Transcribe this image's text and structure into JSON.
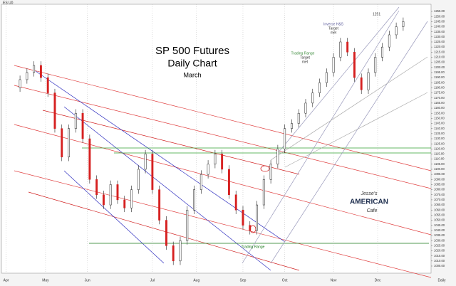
{
  "chart_data": {
    "type": "candlestick",
    "title": "SP 500 Futures",
    "subtitle": "Daily Chart",
    "note": "March",
    "symbol": "ES U0",
    "timeframe": "Daily",
    "annotations": [
      "1251",
      "Inverse H&S",
      "Target",
      "met",
      "Trading Range",
      "Target",
      "met",
      "Trading Range"
    ],
    "logo": [
      "Jesse's",
      "AMERICAN",
      "Cafe"
    ],
    "up_color": "#ffffff",
    "down_color": "#d62020",
    "grid": true,
    "xlim": [
      -5,
      180
    ],
    "ylim": [
      998,
      1262
    ],
    "xticks": [
      {
        "value": -3,
        "label": "Apr"
      },
      {
        "value": 14,
        "label": "May"
      },
      {
        "value": 32,
        "label": "Jun"
      },
      {
        "value": 60,
        "label": "Jul"
      },
      {
        "value": 79,
        "label": "Aug"
      },
      {
        "value": 99,
        "label": "Sep"
      },
      {
        "value": 117,
        "label": "Oct"
      },
      {
        "value": 138,
        "label": "Nov"
      },
      {
        "value": 157,
        "label": "Dec"
      }
    ],
    "yticks": [
      {
        "value": 1005,
        "label": "1005.00"
      },
      {
        "value": 1010,
        "label": "1010.00"
      },
      {
        "value": 1015,
        "label": "1015.00"
      },
      {
        "value": 1020,
        "label": "1020.00"
      },
      {
        "value": 1025,
        "label": "1025.00"
      },
      {
        "value": 1030,
        "label": "1030.00"
      },
      {
        "value": 1035,
        "label": "1035.00"
      },
      {
        "value": 1040,
        "label": "1040.00"
      },
      {
        "value": 1045,
        "label": "1045.00"
      },
      {
        "value": 1050,
        "label": "1050.00"
      },
      {
        "value": 1055,
        "label": "1055.00"
      },
      {
        "value": 1060,
        "label": "1060.00"
      },
      {
        "value": 1065,
        "label": "1065.00"
      },
      {
        "value": 1070,
        "label": "1070.00"
      },
      {
        "value": 1075,
        "label": "1075.00"
      },
      {
        "value": 1080,
        "label": "1080.00"
      },
      {
        "value": 1085,
        "label": "1085.00"
      },
      {
        "value": 1090,
        "label": "1090.00"
      },
      {
        "value": 1095,
        "label": "1095.00"
      },
      {
        "value": 1100,
        "label": "1100.00"
      },
      {
        "value": 1105,
        "label": "1105.00"
      },
      {
        "value": 1110,
        "label": "1110.00"
      },
      {
        "value": 1115,
        "label": "1115.00"
      },
      {
        "value": 1120,
        "label": "1120.00"
      },
      {
        "value": 1125,
        "label": "1125.00"
      },
      {
        "value": 1130,
        "label": "1130.00"
      },
      {
        "value": 1135,
        "label": "1135.00"
      },
      {
        "value": 1140,
        "label": "1140.00"
      },
      {
        "value": 1145,
        "label": "1145.00"
      },
      {
        "value": 1150,
        "label": "1150.00"
      },
      {
        "value": 1155,
        "label": "1155.00"
      },
      {
        "value": 1160,
        "label": "1160.00"
      },
      {
        "value": 1165,
        "label": "1165.00"
      },
      {
        "value": 1170,
        "label": "1170.00"
      },
      {
        "value": 1175,
        "label": "1175.00"
      },
      {
        "value": 1180,
        "label": "1180.00"
      },
      {
        "value": 1185,
        "label": "1185.00"
      },
      {
        "value": 1190,
        "label": "1190.00"
      },
      {
        "value": 1195,
        "label": "1195.00"
      },
      {
        "value": 1200,
        "label": "1200.00"
      },
      {
        "value": 1205,
        "label": "1205.00"
      },
      {
        "value": 1210,
        "label": "1210.00"
      },
      {
        "value": 1215,
        "label": "1215.00"
      },
      {
        "value": 1220,
        "label": "1220.00"
      },
      {
        "value": 1225,
        "label": "1225.00"
      },
      {
        "value": 1230,
        "label": "1230.00"
      },
      {
        "value": 1235,
        "label": "1235.00"
      },
      {
        "value": 1240,
        "label": "1240.00"
      },
      {
        "value": 1245,
        "label": "1245.00"
      },
      {
        "value": 1250,
        "label": "1250.00"
      },
      {
        "value": 1255,
        "label": "1255.00"
      }
    ],
    "x": [
      3,
      6,
      9,
      12,
      15,
      18,
      21,
      24,
      27,
      30,
      33,
      36,
      39,
      42,
      45,
      48,
      51,
      54,
      57,
      60,
      63,
      66,
      69,
      72,
      75,
      78,
      81,
      84,
      87,
      90,
      93,
      96,
      99,
      102,
      105,
      108,
      111,
      114,
      117,
      120,
      123,
      126,
      129,
      132,
      135,
      138,
      141,
      144,
      147,
      150,
      153,
      156,
      159,
      162,
      165,
      168
    ],
    "open": [
      1180,
      1188,
      1195,
      1202,
      1190,
      1175,
      1140,
      1112,
      1140,
      1155,
      1130,
      1090,
      1075,
      1065,
      1085,
      1070,
      1062,
      1080,
      1100,
      1115,
      1080,
      1050,
      1025,
      1010,
      1030,
      1060,
      1080,
      1095,
      1105,
      1115,
      1100,
      1075,
      1060,
      1045,
      1040,
      1065,
      1090,
      1105,
      1120,
      1140,
      1145,
      1155,
      1165,
      1175,
      1185,
      1195,
      1210,
      1225,
      1215,
      1190,
      1178,
      1195,
      1210,
      1220,
      1232,
      1240
    ],
    "high": [
      1192,
      1199,
      1206,
      1206,
      1194,
      1179,
      1144,
      1144,
      1159,
      1159,
      1134,
      1094,
      1079,
      1089,
      1089,
      1074,
      1084,
      1104,
      1119,
      1119,
      1084,
      1054,
      1029,
      1034,
      1064,
      1084,
      1099,
      1109,
      1119,
      1119,
      1104,
      1079,
      1064,
      1049,
      1069,
      1094,
      1109,
      1124,
      1144,
      1149,
      1159,
      1169,
      1179,
      1189,
      1199,
      1214,
      1229,
      1229,
      1219,
      1194,
      1199,
      1214,
      1224,
      1236,
      1244,
      1249
    ],
    "low": [
      1176,
      1184,
      1191,
      1186,
      1171,
      1136,
      1108,
      1108,
      1136,
      1126,
      1086,
      1071,
      1061,
      1061,
      1066,
      1058,
      1058,
      1076,
      1096,
      1076,
      1046,
      1021,
      1006,
      1006,
      1026,
      1056,
      1076,
      1091,
      1101,
      1096,
      1071,
      1056,
      1041,
      1036,
      1036,
      1061,
      1086,
      1101,
      1116,
      1136,
      1141,
      1151,
      1161,
      1171,
      1181,
      1191,
      1206,
      1211,
      1186,
      1174,
      1174,
      1191,
      1206,
      1216,
      1228,
      1236
    ],
    "close": [
      1188,
      1195,
      1202,
      1190,
      1175,
      1140,
      1112,
      1140,
      1155,
      1130,
      1090,
      1075,
      1065,
      1085,
      1070,
      1062,
      1080,
      1100,
      1115,
      1080,
      1050,
      1025,
      1010,
      1030,
      1060,
      1080,
      1095,
      1105,
      1115,
      1100,
      1075,
      1060,
      1045,
      1040,
      1065,
      1090,
      1105,
      1120,
      1140,
      1145,
      1155,
      1165,
      1175,
      1185,
      1195,
      1210,
      1225,
      1215,
      1190,
      1178,
      1195,
      1210,
      1220,
      1232,
      1240,
      1245
    ]
  }
}
